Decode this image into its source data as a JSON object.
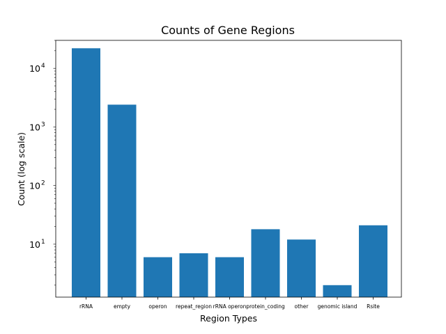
{
  "chart_data": {
    "type": "bar",
    "title": "Counts of Gene Regions",
    "xlabel": "Region Types",
    "ylabel": "Count (log scale)",
    "yscale": "log",
    "ylim": [
      1.25,
      30000
    ],
    "yticks": [
      {
        "base": "10",
        "exp": "1",
        "value": 10
      },
      {
        "base": "10",
        "exp": "2",
        "value": 100
      },
      {
        "base": "10",
        "exp": "3",
        "value": 1000
      },
      {
        "base": "10",
        "exp": "4",
        "value": 10000
      }
    ],
    "grid": false,
    "bar_color": "#1f77b4",
    "categories": [
      "rRNA",
      "empty",
      "operon",
      "repeat_region",
      "rRNA operon",
      "protein_coding",
      "other",
      "genomic island",
      "Rsite"
    ],
    "values": [
      22000,
      2400,
      6,
      7,
      6,
      18,
      12,
      2,
      21
    ]
  }
}
